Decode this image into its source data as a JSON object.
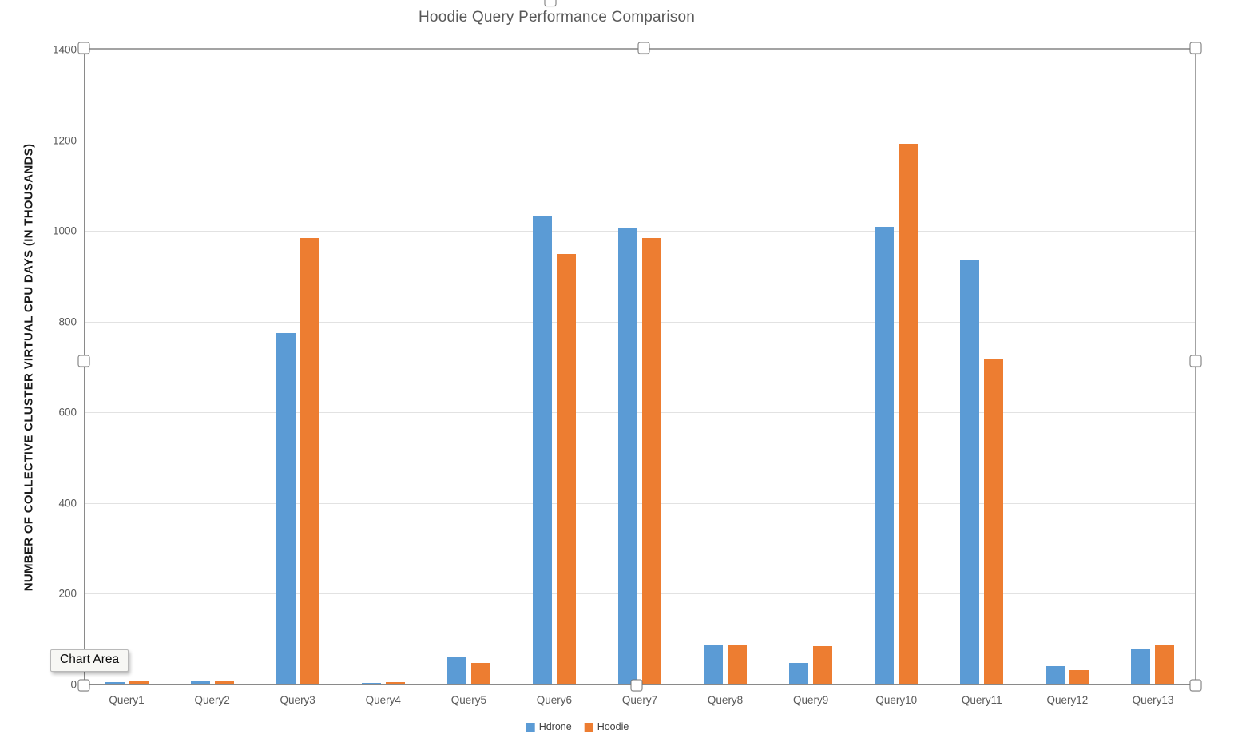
{
  "tooltip": {
    "text": "Chart Area"
  },
  "chart_data": {
    "type": "bar",
    "title": "Hoodie Query Performance Comparison",
    "xlabel": "",
    "ylabel": "NUMBER OF COLLECTIVE CLUSTER VIRTUAL CPU DAYS (IN THOUSANDS)",
    "categories": [
      "Query1",
      "Query2",
      "Query3",
      "Query4",
      "Query5",
      "Query6",
      "Query7",
      "Query8",
      "Query9",
      "Query10",
      "Query11",
      "Query12",
      "Query13"
    ],
    "series": [
      {
        "name": "Hdrone",
        "color": "#5B9BD5",
        "values": [
          5,
          9,
          775,
          4,
          62,
          1032,
          1005,
          88,
          48,
          1009,
          935,
          40,
          79
        ]
      },
      {
        "name": "Hoodie",
        "color": "#ED7D31",
        "values": [
          9,
          9,
          985,
          5,
          48,
          950,
          985,
          86,
          84,
          1193,
          717,
          32,
          88
        ]
      }
    ],
    "ylim": [
      0,
      1400
    ],
    "ytick_interval": 200,
    "grid": true,
    "legend_position": "bottom",
    "selection_state": "selected"
  },
  "colors": {
    "hdrone": "#5B9BD5",
    "hoodie": "#ED7D31",
    "gridline": "#E2E2E2",
    "axis": "#8A8A8A",
    "title_text": "#595959"
  }
}
